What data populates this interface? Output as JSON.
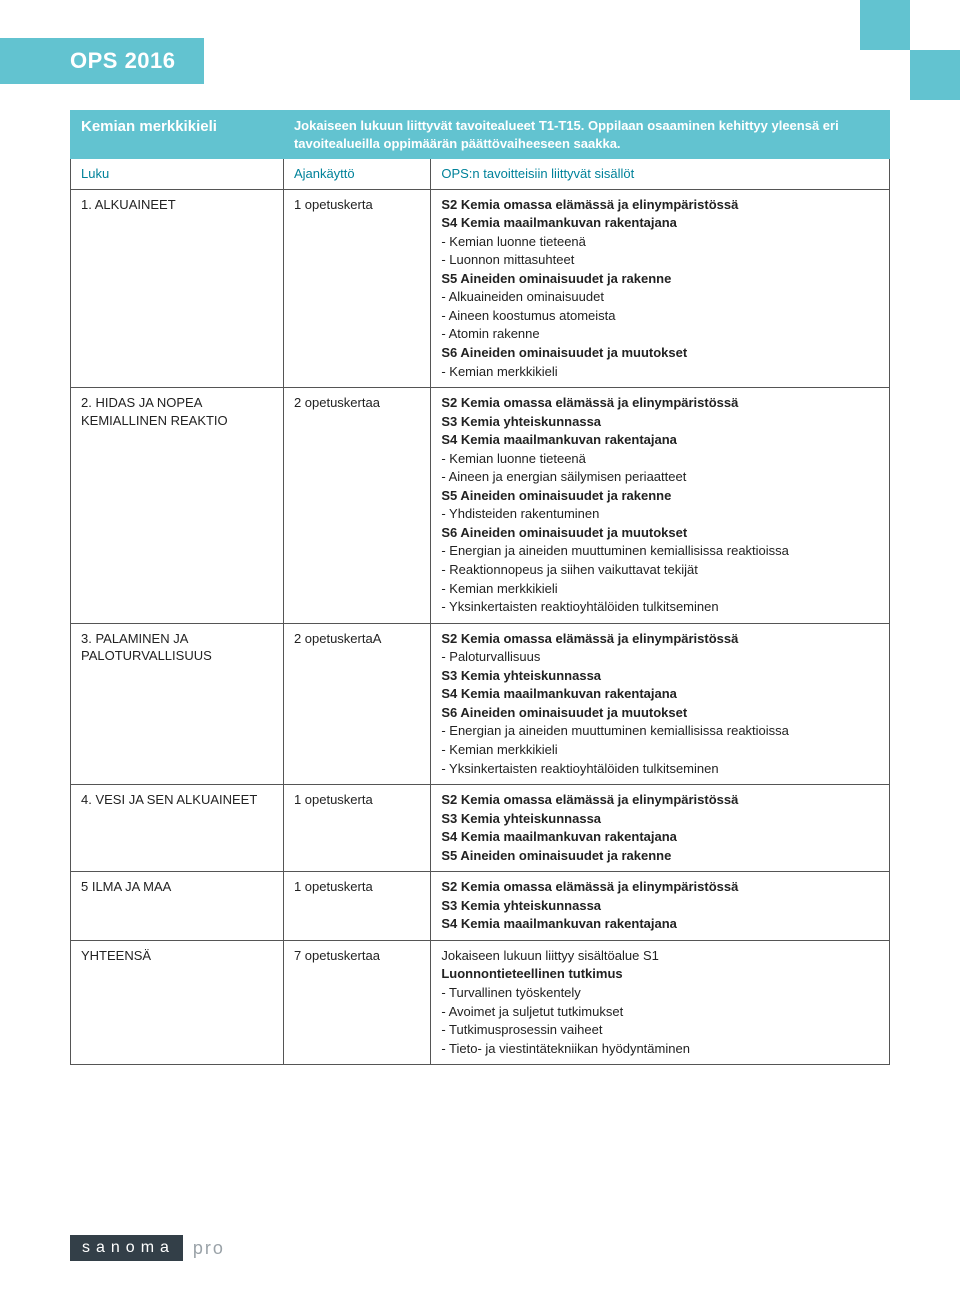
{
  "badge": "OPS 2016",
  "header": {
    "title": "Kemian merkkikieli",
    "description": "Jokaiseen lukuun liittyvät tavoitealueet T1-T15. Oppilaan osaaminen kehittyy yleensä eri tavoitealueilla oppimäärän päättövaiheeseen saakka."
  },
  "subheader": {
    "luku": "Luku",
    "aika": "Ajankäyttö",
    "sisalto": "OPS:n tavoitteisiin liittyvät sisällöt"
  },
  "rows": [
    {
      "luku": "1. ALKUAINEET",
      "aika": "1 opetuskerta",
      "lines": [
        {
          "b": true,
          "t": "S2 Kemia omassa elämässä ja elinympäristössä"
        },
        {
          "b": true,
          "t": "S4 Kemia maailmankuvan rakentajana"
        },
        {
          "b": false,
          "t": "- Kemian luonne tieteenä"
        },
        {
          "b": false,
          "t": "- Luonnon mittasuhteet"
        },
        {
          "b": true,
          "t": "S5 Aineiden ominaisuudet ja rakenne"
        },
        {
          "b": false,
          "t": "- Alkuaineiden ominaisuudet"
        },
        {
          "b": false,
          "t": "- Aineen koostumus atomeista"
        },
        {
          "b": false,
          "t": "- Atomin rakenne"
        },
        {
          "b": true,
          "t": "S6 Aineiden ominaisuudet ja muutokset"
        },
        {
          "b": false,
          "t": "- Kemian merkkikieli"
        }
      ]
    },
    {
      "luku": "2. HIDAS JA NOPEA KEMIALLINEN REAKTIO",
      "aika": "2 opetuskertaa",
      "lines": [
        {
          "b": true,
          "t": "S2 Kemia omassa elämässä ja elinympäristössä"
        },
        {
          "b": true,
          "t": "S3 Kemia yhteiskunnassa"
        },
        {
          "b": true,
          "t": "S4 Kemia maailmankuvan rakentajana"
        },
        {
          "b": false,
          "t": "- Kemian luonne tieteenä"
        },
        {
          "b": false,
          "t": "- Aineen ja energian säilymisen periaatteet"
        },
        {
          "b": true,
          "t": "S5 Aineiden ominaisuudet ja rakenne"
        },
        {
          "b": false,
          "t": "- Yhdisteiden rakentuminen"
        },
        {
          "b": true,
          "t": "S6 Aineiden ominaisuudet ja muutokset"
        },
        {
          "b": false,
          "t": "- Energian ja aineiden muuttuminen kemiallisissa reaktioissa"
        },
        {
          "b": false,
          "t": "- Reaktionnopeus ja siihen vaikuttavat tekijät"
        },
        {
          "b": false,
          "t": "- Kemian merkkikieli"
        },
        {
          "b": false,
          "t": "- Yksinkertaisten reaktioyhtälöiden tulkitseminen"
        }
      ]
    },
    {
      "luku": "3. PALAMINEN JA PALOTURVALLISUUS",
      "aika": "2 opetuskertaA",
      "lines": [
        {
          "b": true,
          "t": "S2 Kemia omassa elämässä ja elinympäristössä"
        },
        {
          "b": false,
          "t": "- Paloturvallisuus"
        },
        {
          "b": true,
          "t": "S3 Kemia yhteiskunnassa"
        },
        {
          "b": true,
          "t": "S4 Kemia maailmankuvan rakentajana"
        },
        {
          "b": true,
          "t": "S6 Aineiden ominaisuudet ja muutokset"
        },
        {
          "b": false,
          "t": "- Energian ja aineiden muuttuminen kemiallisissa reaktioissa"
        },
        {
          "b": false,
          "t": "- Kemian merkkikieli"
        },
        {
          "b": false,
          "t": "- Yksinkertaisten reaktioyhtälöiden tulkitseminen"
        }
      ]
    },
    {
      "luku": "4. VESI JA SEN ALKUAINEET",
      "aika": "1 opetuskerta",
      "lines": [
        {
          "b": true,
          "t": "S2 Kemia omassa elämässä ja elinympäristössä"
        },
        {
          "b": true,
          "t": "S3 Kemia yhteiskunnassa"
        },
        {
          "b": true,
          "t": "S4 Kemia maailmankuvan rakentajana"
        },
        {
          "b": true,
          "t": "S5 Aineiden ominaisuudet ja rakenne"
        }
      ]
    },
    {
      "luku": "5 ILMA JA MAA",
      "aika": "1 opetuskerta",
      "lines": [
        {
          "b": true,
          "t": "S2 Kemia omassa elämässä ja elinympäristössä"
        },
        {
          "b": true,
          "t": "S3 Kemia yhteiskunnassa"
        },
        {
          "b": true,
          "t": "S4 Kemia maailmankuvan rakentajana"
        }
      ]
    },
    {
      "luku": "YHTEENSÄ",
      "aika": "7 opetuskertaa",
      "lines": [
        {
          "b": false,
          "t": "Jokaiseen lukuun liittyy sisältöalue S1"
        },
        {
          "b": true,
          "t": "Luonnontieteellinen tutkimus"
        },
        {
          "b": false,
          "t": "- Turvallinen työskentely"
        },
        {
          "b": false,
          "t": "- Avoimet ja suljetut tutkimukset"
        },
        {
          "b": false,
          "t": "- Tutkimusprosessin vaiheet"
        },
        {
          "b": false,
          "t": "- Tieto- ja viestintätekniikan hyödyntäminen"
        }
      ]
    }
  ],
  "footer": {
    "brand": "sanoma",
    "sub": "pro"
  },
  "colors": {
    "accent": "#62c3d0",
    "text": "#222222",
    "teal_text": "#00829a",
    "logo_bg": "#333f48"
  }
}
